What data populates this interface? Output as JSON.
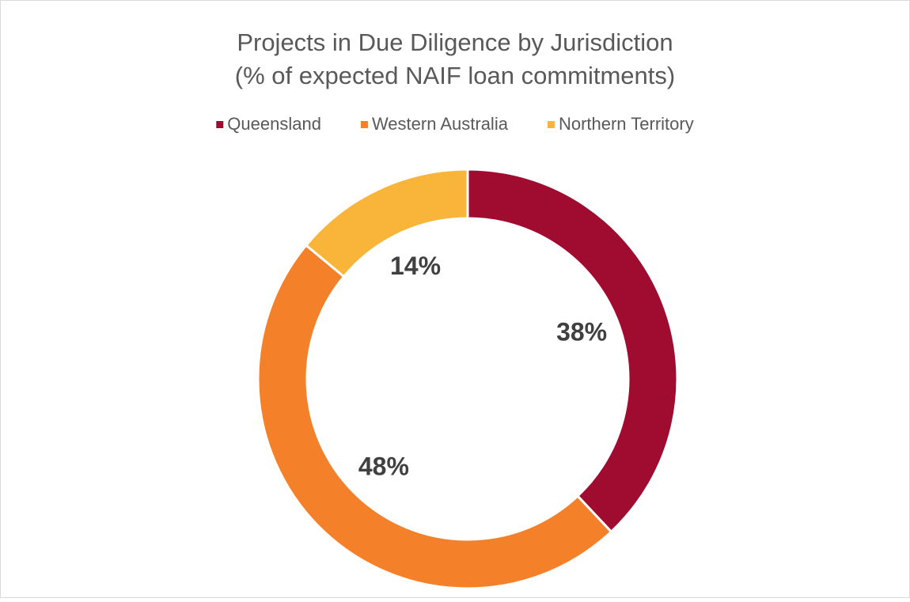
{
  "chart_data": {
    "type": "donut",
    "title": "Projects in Due Diligence by Jurisdiction",
    "subtitle": "(% of expected NAIF loan commitments)",
    "categories": [
      "Queensland",
      "Western Australia",
      "Northern Territory"
    ],
    "values": [
      38,
      48,
      14
    ],
    "value_labels": [
      "38%",
      "48%",
      "14%"
    ],
    "colors": [
      "#a00b30",
      "#f4812a",
      "#f9b43a"
    ],
    "legend": "top"
  }
}
